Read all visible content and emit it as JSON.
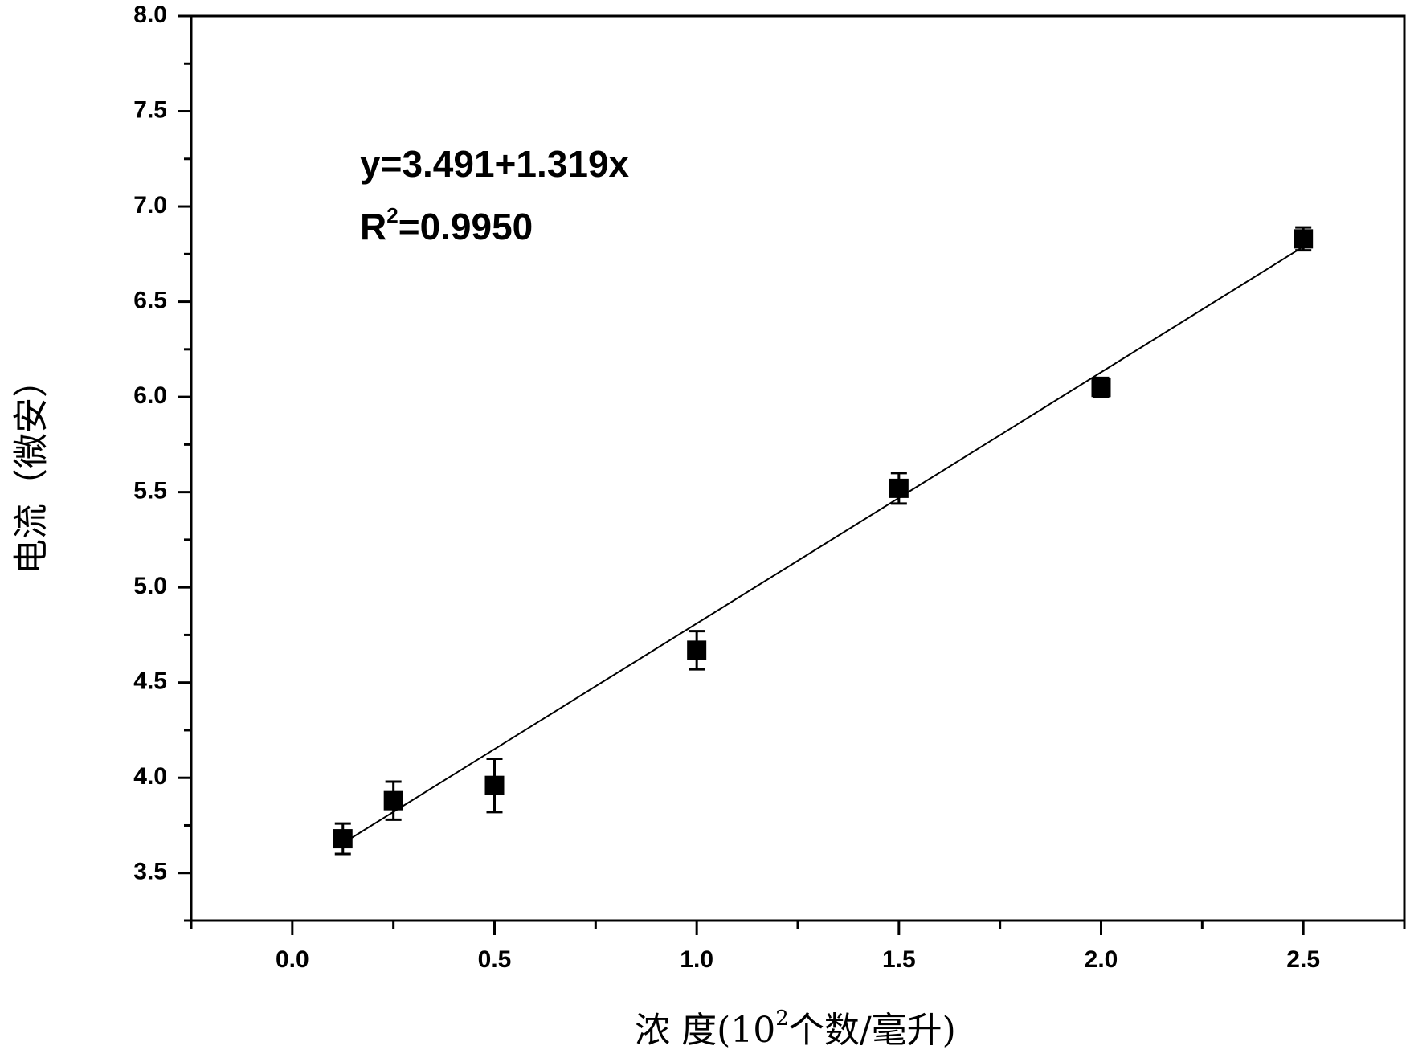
{
  "chart_data": {
    "type": "scatter",
    "x_label": {
      "prefix": "浓 度(10",
      "sup": "2",
      "suffix": "个数/毫升)"
    },
    "y_label": "电流（微安）",
    "annotation": "y=3.491+1.319x",
    "annotation_r2": {
      "prefix": "R",
      "sup": "2",
      "suffix": "=0.9950"
    },
    "x": [
      0.125,
      0.25,
      0.5,
      1.0,
      1.5,
      2.0,
      2.5
    ],
    "series": [
      {
        "values": [
          3.68,
          3.88,
          3.96,
          4.67,
          5.52,
          6.05,
          6.83
        ],
        "errors": [
          0.08,
          0.1,
          0.14,
          0.1,
          0.08,
          0.05,
          0.06
        ],
        "color": "#000000"
      }
    ],
    "fit_line": {
      "x": [
        0.125,
        2.5
      ],
      "values": [
        3.656,
        6.789
      ],
      "color": "#000000"
    },
    "xlim": [
      -0.25,
      2.75
    ],
    "ylim": [
      3.25,
      8.0
    ],
    "xticks": [
      {
        "value": 0,
        "label": "0.0"
      },
      0.5,
      {
        "value": 1,
        "label": "1.0"
      },
      1.5,
      {
        "value": 2,
        "label": "2.0"
      },
      2.5
    ],
    "xminorticks": [
      -0.25,
      0.25,
      0.75,
      1.25,
      1.75,
      2.25,
      2.75
    ],
    "yticks": [
      3.5,
      {
        "value": 4,
        "label": "4.0"
      },
      4.5,
      {
        "value": 5,
        "label": "5.0"
      },
      5.5,
      {
        "value": 6,
        "label": "6.0"
      },
      6.5,
      {
        "value": 7,
        "label": "7.0"
      },
      7.5,
      {
        "value": 8,
        "label": "8.0"
      }
    ],
    "yminorticks": [
      3.25,
      3.75,
      4.25,
      4.75,
      5.25,
      5.75,
      6.25,
      6.75,
      7.25,
      7.75
    ]
  }
}
